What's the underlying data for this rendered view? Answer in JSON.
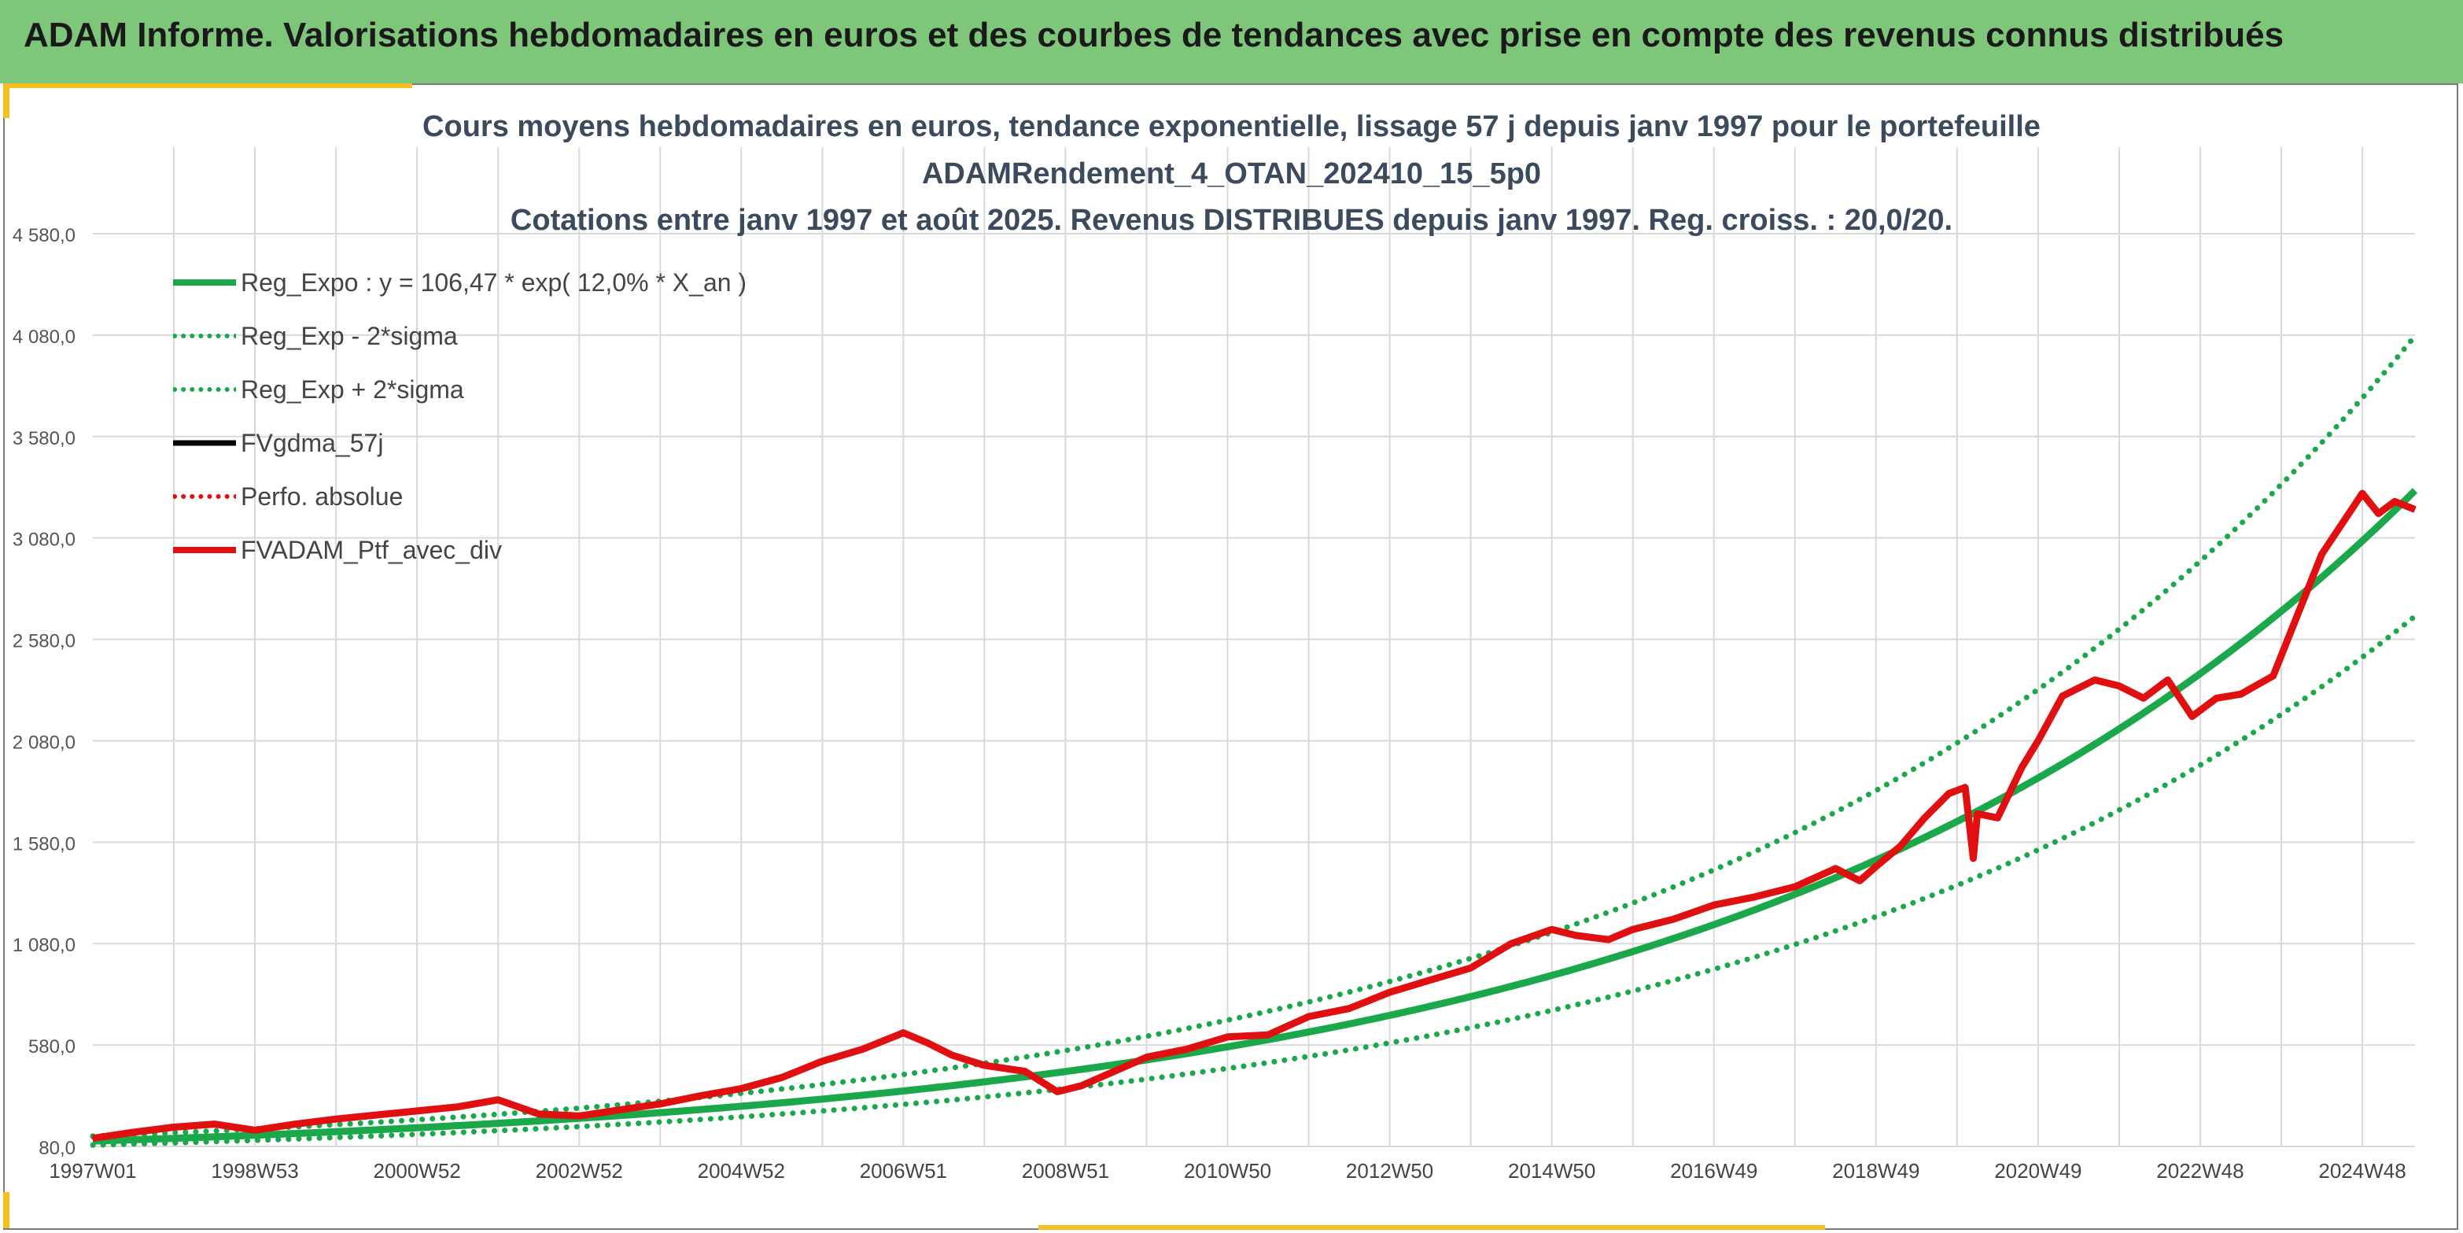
{
  "header": {
    "banner_title": "ADAM Informe. Valorisations hebdomadaires en euros et des courbes de tendances avec prise en compte des revenus connus distribués"
  },
  "colors": {
    "banner_bg": "#7dc67a",
    "accent_yellow": "#f4c020",
    "reg_expo": "#1aa84a",
    "sigma_band": "#1aa84a",
    "fv_gdma": "#000000",
    "perfo": "#e01010",
    "fv_adam": "#e01010",
    "grid": "#d9d9d9"
  },
  "chart_data": {
    "type": "line",
    "title_lines": [
      "Cours moyens hebdomadaires en euros, tendance exponentielle, lissage 57 j depuis janv 1997 pour le portefeuille",
      "ADAMRendement_4_OTAN_202410_15_5p0",
      "Cotations entre janv 1997 et août 2025. Revenus DISTRIBUES depuis janv 1997. Reg. croiss. : 20,0/20."
    ],
    "x_range": [
      1997.0,
      2025.65
    ],
    "x_tick_labels": [
      "1997W01",
      "1998W53",
      "2000W52",
      "2002W52",
      "2004W52",
      "2006W51",
      "2008W51",
      "2010W50",
      "2012W50",
      "2014W50",
      "2016W49",
      "2018W49",
      "2020W49",
      "2022W48",
      "2024W48"
    ],
    "x_tick_positions": [
      1997.0,
      1999.0,
      2001.0,
      2003.0,
      2005.0,
      2007.0,
      2009.0,
      2011.0,
      2013.0,
      2015.0,
      2017.0,
      2019.0,
      2021.0,
      2023.0,
      2025.0
    ],
    "y_range": [
      80,
      4580
    ],
    "y_ticks": [
      80,
      580,
      1080,
      1580,
      2080,
      2580,
      3080,
      3580,
      4080,
      4580
    ],
    "y_tick_labels": [
      "80,0",
      "580,0",
      "1 080,0",
      "1 580,0",
      "2 080,0",
      "2 580,0",
      "3 080,0",
      "3 580,0",
      "4 080,0",
      "4 580,0"
    ],
    "grid": true,
    "legend_position": "top-left",
    "regression": {
      "a": 106.47,
      "rate": 0.12,
      "sigma_factor": 1.23
    },
    "series": [
      {
        "name": "Reg_Expo : y = 106,47 * exp( 12,0% *  X_an )",
        "style": "solid-thick",
        "color": "#1aa84a"
      },
      {
        "name": "Reg_Exp - 2*sigma",
        "style": "dotted",
        "color": "#1aa84a"
      },
      {
        "name": "Reg_Exp + 2*sigma",
        "style": "dotted",
        "color": "#1aa84a"
      },
      {
        "name": "FVgdma_57j",
        "style": "solid",
        "color": "#000000"
      },
      {
        "name": "Perfo. absolue",
        "style": "dotted",
        "color": "#e01010"
      },
      {
        "name": "FVADAM_Ptf_avec_div",
        "style": "solid-thick",
        "color": "#e01010"
      }
    ],
    "portfolio_x": [
      1997.0,
      1997.5,
      1998.0,
      1998.5,
      1999.0,
      1999.5,
      2000.0,
      2000.5,
      2001.0,
      2001.5,
      2002.0,
      2002.5,
      2003.0,
      2003.5,
      2004.0,
      2004.5,
      2005.0,
      2005.5,
      2006.0,
      2006.5,
      2007.0,
      2007.3,
      2007.6,
      2008.0,
      2008.5,
      2008.9,
      2009.2,
      2009.6,
      2010.0,
      2010.5,
      2011.0,
      2011.5,
      2012.0,
      2012.5,
      2013.0,
      2013.5,
      2014.0,
      2014.5,
      2015.0,
      2015.3,
      2015.7,
      2016.0,
      2016.5,
      2017.0,
      2017.5,
      2018.0,
      2018.5,
      2018.8,
      2019.0,
      2019.3,
      2019.6,
      2019.9,
      2020.1,
      2020.2,
      2020.25,
      2020.5,
      2020.8,
      2021.0,
      2021.3,
      2021.7,
      2022.0,
      2022.3,
      2022.6,
      2022.9,
      2023.2,
      2023.5,
      2023.9,
      2024.2,
      2024.5,
      2024.8,
      2025.0,
      2025.2,
      2025.4,
      2025.65
    ],
    "portfolio_y": [
      120,
      150,
      175,
      190,
      160,
      190,
      215,
      235,
      255,
      275,
      310,
      240,
      230,
      260,
      290,
      330,
      365,
      420,
      500,
      560,
      640,
      590,
      530,
      480,
      450,
      350,
      380,
      450,
      520,
      560,
      620,
      630,
      720,
      760,
      840,
      900,
      960,
      1080,
      1150,
      1120,
      1100,
      1150,
      1200,
      1270,
      1310,
      1360,
      1450,
      1390,
      1460,
      1560,
      1700,
      1820,
      1850,
      1500,
      1720,
      1700,
      1950,
      2080,
      2300,
      2380,
      2350,
      2290,
      2380,
      2200,
      2290,
      2310,
      2400,
      2700,
      3000,
      3180,
      3300,
      3200,
      3260,
      3220
    ]
  }
}
